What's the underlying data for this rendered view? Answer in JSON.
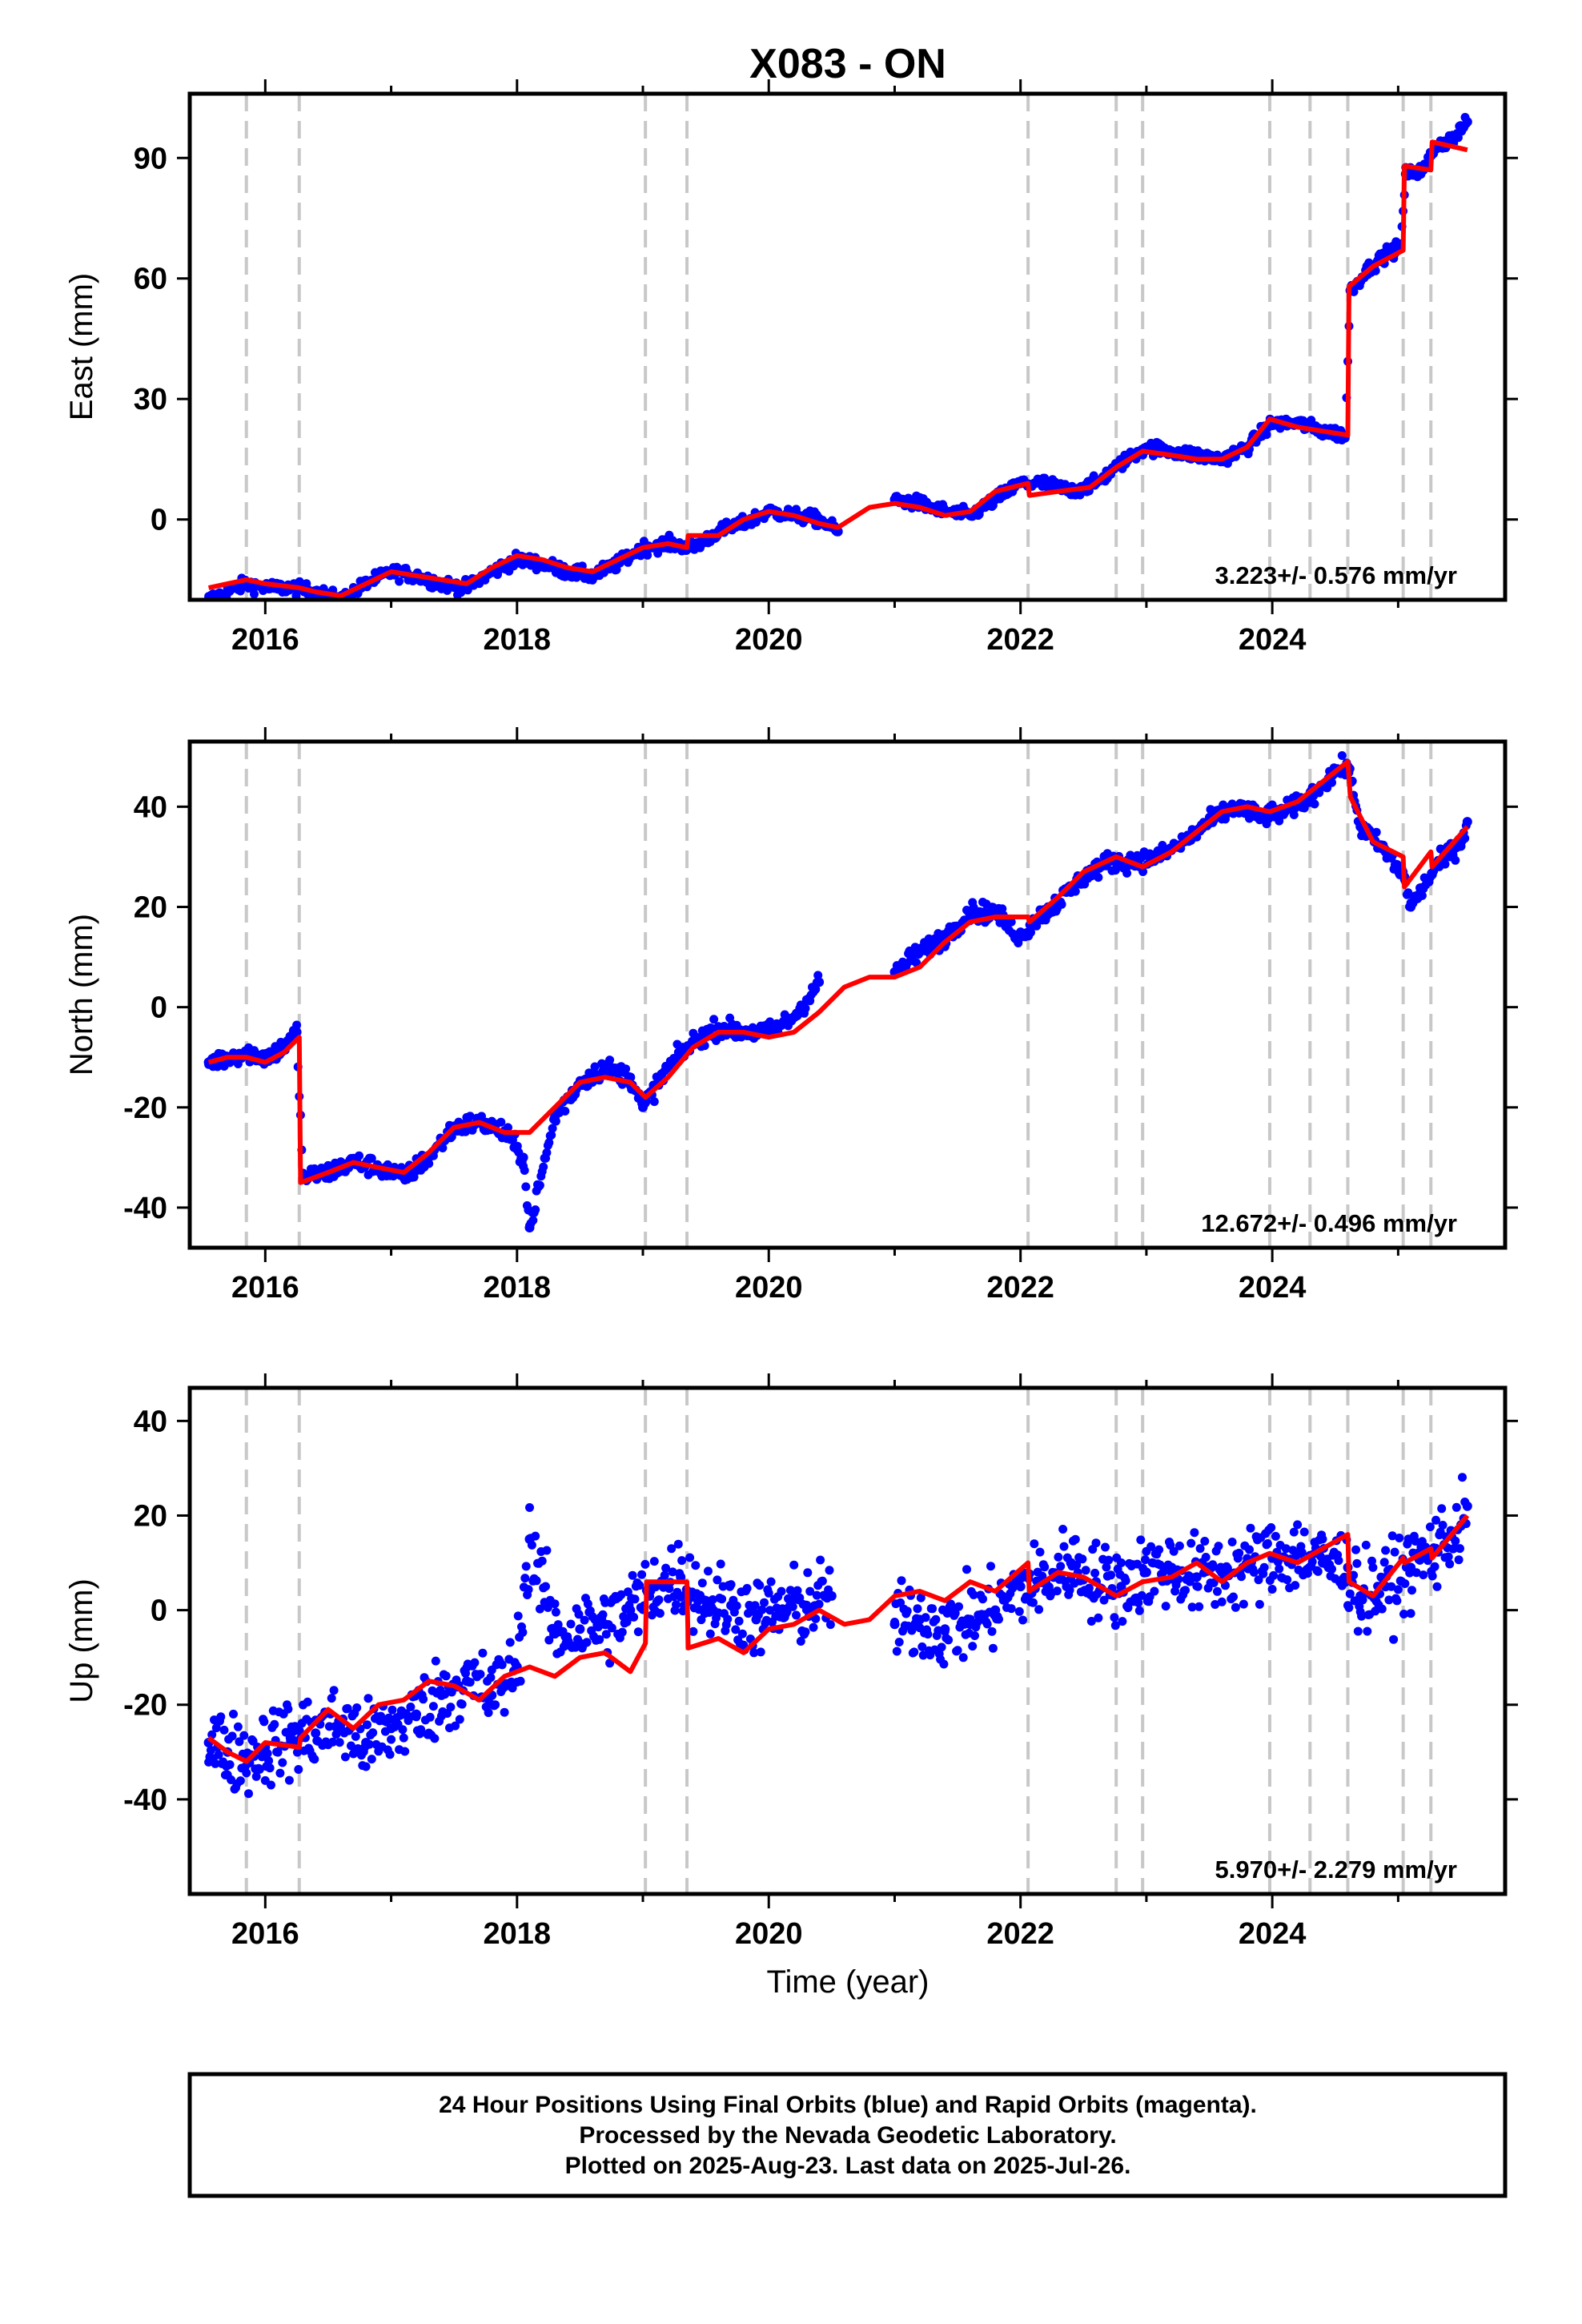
{
  "title": "X083 - ON",
  "xlabel": "Time (year)",
  "caption": [
    "24 Hour Positions Using Final Orbits (blue) and Rapid Orbits (magenta).",
    "Processed by the Nevada Geodetic Laboratory.",
    "Plotted on 2025-Aug-23. Last data on 2025-Jul-26."
  ],
  "colors": {
    "observations": "#0000ff",
    "model": "#ff0000",
    "events": "#c8c8c8",
    "frame": "#000000"
  },
  "chart_data": [
    {
      "type": "scatter",
      "panel": "East",
      "ylabel": "East (mm)",
      "rate_label": "3.223+/- 0.576 mm/yr",
      "xlim": [
        2015.4,
        2025.85
      ],
      "ylim": [
        -20,
        106
      ],
      "yticks": [
        0,
        30,
        60,
        90
      ],
      "xticks": [
        2016,
        2018,
        2020,
        2022,
        2024
      ],
      "xtick_labels": [
        "2016",
        "2018",
        "2020",
        "2022",
        "2024"
      ],
      "event_lines": [
        2015.85,
        2016.27,
        2019.02,
        2019.35,
        2022.06,
        2022.76,
        2022.97,
        2023.98,
        2024.3,
        2024.6,
        2025.04,
        2025.26
      ],
      "series": [
        {
          "role": "observations",
          "x": [
            2015.55,
            2015.7,
            2015.85,
            2016.0,
            2016.2,
            2016.4,
            2016.6,
            2016.8,
            2017.0,
            2017.2,
            2017.4,
            2017.6,
            2017.8,
            2018.0,
            2018.2,
            2018.4,
            2018.6,
            2018.8,
            2019.0,
            2019.2,
            2019.4,
            2019.6,
            2019.8,
            2020.0,
            2020.2,
            2020.4,
            2020.55,
            2021.0,
            2021.2,
            2021.4,
            2021.6,
            2021.8,
            2022.0,
            2022.2,
            2022.4,
            2022.6,
            2022.8,
            2023.0,
            2023.2,
            2023.4,
            2023.6,
            2023.8,
            2024.0,
            2024.2,
            2024.4,
            2024.58,
            2024.62,
            2024.75,
            2024.9,
            2025.02,
            2025.06,
            2025.2,
            2025.3,
            2025.45,
            2025.55
          ],
          "y": [
            -20,
            -18,
            -16,
            -17,
            -17,
            -18,
            -20,
            -16,
            -13,
            -14,
            -16,
            -17,
            -13,
            -10,
            -11,
            -13,
            -14,
            -11,
            -7,
            -6,
            -7,
            -3,
            -1,
            2,
            1,
            0,
            -3,
            5,
            4,
            2,
            1,
            5,
            9,
            9,
            7,
            9,
            14,
            18,
            17,
            16,
            15,
            18,
            24,
            24,
            22,
            21,
            57,
            62,
            66,
            68,
            86,
            87,
            93,
            95,
            99
          ]
        },
        {
          "role": "model",
          "x": [
            2015.55,
            2015.7,
            2015.85,
            2016.0,
            2016.27,
            2016.4,
            2016.6,
            2016.8,
            2017.0,
            2017.2,
            2017.4,
            2017.6,
            2017.8,
            2018.0,
            2018.2,
            2018.4,
            2018.6,
            2018.8,
            2019.0,
            2019.2,
            2019.35,
            2019.36,
            2019.6,
            2019.8,
            2020.0,
            2020.2,
            2020.4,
            2020.55,
            2020.8,
            2021.0,
            2021.2,
            2021.4,
            2021.6,
            2021.8,
            2022.06,
            2022.07,
            2022.3,
            2022.55,
            2022.76,
            2022.97,
            2023.2,
            2023.4,
            2023.6,
            2023.8,
            2023.98,
            2024.2,
            2024.4,
            2024.6,
            2024.61,
            2024.8,
            2025.04,
            2025.05,
            2025.26,
            2025.27,
            2025.55
          ],
          "y": [
            -17,
            -16,
            -15,
            -16,
            -17,
            -18,
            -19,
            -16,
            -13,
            -14,
            -15,
            -16,
            -12,
            -9,
            -10,
            -12,
            -13,
            -10,
            -7,
            -6,
            -7,
            -4,
            -4,
            0,
            2,
            1,
            -1,
            -2,
            3,
            4,
            3,
            1,
            2,
            7,
            9,
            6,
            7,
            8,
            13,
            17,
            16,
            15,
            15,
            18,
            25,
            23,
            22,
            21,
            58,
            63,
            67,
            88,
            87,
            94,
            92
          ]
        }
      ]
    },
    {
      "type": "scatter",
      "panel": "North",
      "ylabel": "North (mm)",
      "rate_label": "12.672+/- 0.496 mm/yr",
      "xlim": [
        2015.4,
        2025.85
      ],
      "ylim": [
        -48,
        53
      ],
      "yticks": [
        -40,
        -20,
        0,
        20,
        40
      ],
      "xticks": [
        2016,
        2018,
        2020,
        2022,
        2024
      ],
      "xtick_labels": [
        "2016",
        "2018",
        "2020",
        "2022",
        "2024"
      ],
      "event_lines": [
        2015.85,
        2016.27,
        2019.02,
        2019.35,
        2022.06,
        2022.76,
        2022.97,
        2023.98,
        2024.3,
        2024.6,
        2025.04,
        2025.26
      ],
      "series": [
        {
          "role": "observations",
          "x": [
            2015.55,
            2015.7,
            2015.85,
            2016.0,
            2016.15,
            2016.25,
            2016.3,
            2016.5,
            2016.7,
            2016.9,
            2017.1,
            2017.3,
            2017.5,
            2017.7,
            2017.9,
            2018.05,
            2018.1,
            2018.3,
            2018.5,
            2018.7,
            2018.9,
            2019.0,
            2019.2,
            2019.4,
            2019.6,
            2019.8,
            2020.0,
            2020.2,
            2020.4,
            2021.0,
            2021.2,
            2021.4,
            2021.6,
            2021.8,
            2022.0,
            2022.1,
            2022.3,
            2022.5,
            2022.7,
            2022.9,
            2023.1,
            2023.3,
            2023.5,
            2023.7,
            2023.9,
            2024.1,
            2024.3,
            2024.5,
            2024.6,
            2024.7,
            2024.9,
            2025.05,
            2025.1,
            2025.3,
            2025.5,
            2025.55
          ],
          "y": [
            -11,
            -10,
            -9,
            -10,
            -8,
            -5,
            -34,
            -33,
            -31,
            -32,
            -34,
            -30,
            -24,
            -23,
            -25,
            -30,
            -44,
            -22,
            -15,
            -12,
            -14,
            -20,
            -12,
            -7,
            -4,
            -5,
            -5,
            -2,
            5,
            7,
            11,
            14,
            19,
            19,
            14,
            17,
            21,
            26,
            29,
            29,
            30,
            33,
            37,
            40,
            38,
            39,
            42,
            47,
            48,
            36,
            31,
            26,
            20,
            28,
            33,
            37
          ]
        },
        {
          "role": "model",
          "x": [
            2015.55,
            2015.7,
            2015.85,
            2016.0,
            2016.15,
            2016.27,
            2016.28,
            2016.5,
            2016.7,
            2016.9,
            2017.1,
            2017.3,
            2017.5,
            2017.7,
            2017.9,
            2018.1,
            2018.3,
            2018.5,
            2018.7,
            2018.9,
            2019.02,
            2019.2,
            2019.4,
            2019.6,
            2019.8,
            2020.0,
            2020.2,
            2020.4,
            2020.6,
            2020.8,
            2021.0,
            2021.2,
            2021.4,
            2021.6,
            2021.8,
            2022.06,
            2022.07,
            2022.3,
            2022.5,
            2022.76,
            2022.97,
            2023.2,
            2023.4,
            2023.6,
            2023.8,
            2023.98,
            2024.2,
            2024.4,
            2024.6,
            2024.62,
            2024.8,
            2025.04,
            2025.05,
            2025.26,
            2025.27,
            2025.55
          ],
          "y": [
            -11,
            -10,
            -10,
            -11,
            -9,
            -6,
            -35,
            -33,
            -31,
            -32,
            -33,
            -29,
            -24,
            -23,
            -25,
            -25,
            -20,
            -15,
            -14,
            -15,
            -18,
            -14,
            -8,
            -5,
            -5,
            -6,
            -5,
            -1,
            4,
            6,
            6,
            8,
            13,
            17,
            18,
            18,
            17,
            22,
            27,
            30,
            28,
            31,
            35,
            39,
            40,
            39,
            41,
            45,
            49,
            42,
            33,
            30,
            24,
            31,
            28,
            36
          ]
        }
      ]
    },
    {
      "type": "scatter",
      "panel": "Up",
      "ylabel": "Up (mm)",
      "rate_label": "5.970+/- 2.279 mm/yr",
      "xlim": [
        2015.4,
        2025.85
      ],
      "ylim": [
        -60,
        47
      ],
      "yticks": [
        -40,
        -20,
        0,
        20,
        40
      ],
      "xticks": [
        2016,
        2018,
        2020,
        2022,
        2024
      ],
      "xtick_labels": [
        "2016",
        "2018",
        "2020",
        "2022",
        "2024"
      ],
      "event_lines": [
        2015.85,
        2016.27,
        2019.02,
        2019.35,
        2022.06,
        2022.76,
        2022.97,
        2023.98,
        2024.3,
        2024.6,
        2025.04,
        2025.26
      ],
      "series": [
        {
          "role": "observations",
          "x": [
            2015.55,
            2015.7,
            2015.85,
            2016.0,
            2016.2,
            2016.4,
            2016.6,
            2016.8,
            2017.0,
            2017.2,
            2017.4,
            2017.6,
            2017.8,
            2018.0,
            2018.1,
            2018.3,
            2018.5,
            2018.7,
            2018.9,
            2019.1,
            2019.3,
            2019.5,
            2019.7,
            2019.9,
            2020.1,
            2020.3,
            2020.5,
            2021.0,
            2021.2,
            2021.4,
            2021.6,
            2021.8,
            2022.0,
            2022.2,
            2022.4,
            2022.6,
            2022.8,
            2023.0,
            2023.2,
            2023.4,
            2023.6,
            2023.8,
            2024.0,
            2024.2,
            2024.4,
            2024.6,
            2024.7,
            2024.9,
            2025.1,
            2025.3,
            2025.5,
            2025.55
          ],
          "y": [
            -28,
            -30,
            -31,
            -29,
            -27,
            -26,
            -24,
            -28,
            -25,
            -22,
            -18,
            -15,
            -18,
            -12,
            15,
            -5,
            -4,
            -3,
            0,
            5,
            7,
            2,
            1,
            -2,
            0,
            1,
            3,
            -3,
            -2,
            -4,
            -2,
            0,
            5,
            6,
            10,
            6,
            5,
            8,
            9,
            7,
            8,
            9,
            11,
            12,
            10,
            9,
            3,
            5,
            9,
            13,
            18,
            22
          ]
        },
        {
          "role": "model",
          "x": [
            2015.55,
            2015.7,
            2015.85,
            2016.0,
            2016.27,
            2016.28,
            2016.5,
            2016.7,
            2016.9,
            2017.1,
            2017.3,
            2017.5,
            2017.7,
            2017.9,
            2018.1,
            2018.3,
            2018.5,
            2018.7,
            2018.9,
            2019.02,
            2019.03,
            2019.35,
            2019.36,
            2019.6,
            2019.8,
            2020.0,
            2020.2,
            2020.4,
            2020.6,
            2020.8,
            2021.0,
            2021.2,
            2021.4,
            2021.6,
            2021.8,
            2022.06,
            2022.07,
            2022.3,
            2022.5,
            2022.76,
            2022.97,
            2023.2,
            2023.4,
            2023.6,
            2023.8,
            2023.98,
            2024.2,
            2024.4,
            2024.6,
            2024.61,
            2024.8,
            2025.04,
            2025.05,
            2025.26,
            2025.27,
            2025.55
          ],
          "y": [
            -27,
            -30,
            -32,
            -28,
            -29,
            -27,
            -21,
            -25,
            -20,
            -19,
            -15,
            -16,
            -19,
            -14,
            -12,
            -14,
            -10,
            -9,
            -13,
            -7,
            6,
            6,
            -8,
            -6,
            -9,
            -4,
            -3,
            0,
            -3,
            -2,
            3,
            4,
            2,
            6,
            4,
            10,
            4,
            8,
            7,
            3,
            6,
            7,
            10,
            6,
            10,
            12,
            10,
            13,
            16,
            6,
            3,
            11,
            10,
            13,
            11,
            20
          ]
        }
      ]
    }
  ]
}
